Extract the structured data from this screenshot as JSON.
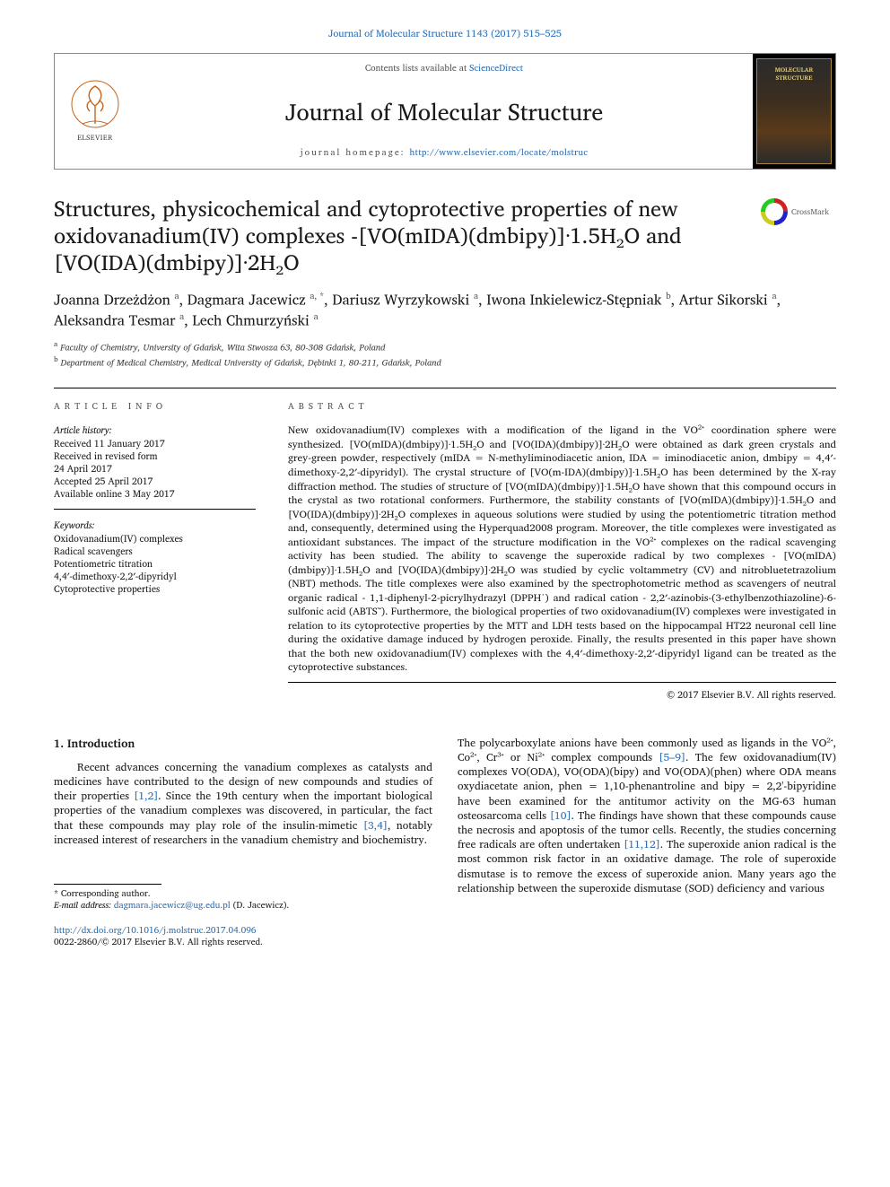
{
  "citation": {
    "text": "Journal of Molecular Structure 1143 (2017) 515–525",
    "link_color": "#2a6fb5"
  },
  "masthead": {
    "elsevier_label": "ELSEVIER",
    "contents_prefix": "Contents lists available at ",
    "contents_linktext": "ScienceDirect",
    "journal": "Journal of Molecular Structure",
    "homepage_label": "journal homepage: ",
    "homepage_url": "http://www.elsevier.com/locate/molstruc",
    "cover_text": "MOLECULAR STRUCTURE"
  },
  "crossmark_label": "CrossMark",
  "title": "Structures, physicochemical and cytoprotective properties of new oxidovanadium(IV) complexes -[VO(mIDA)(dmbipy)]·1.5H₂O and [VO(IDA)(dmbipy)]·2H₂O",
  "authors_html": "Joanna Drzeżdżon <sup>a</sup>, Dagmara Jacewicz <sup>a, *</sup>, Dariusz Wyrzykowski <sup>a</sup>, Iwona Inkielewicz-Stępniak <sup>b</sup>, Artur Sikorski <sup>a</sup>, Aleksandra Tesmar <sup>a</sup>, Lech Chmurzyński <sup>a</sup>",
  "affiliations": [
    {
      "sup": "a",
      "text": "Faculty of Chemistry, University of Gdańsk, Wita Stwosza 63, 80-308 Gdańsk, Poland"
    },
    {
      "sup": "b",
      "text": "Department of Medical Chemistry, Medical University of Gdańsk, Dębinki 1, 80-211, Gdańsk, Poland"
    }
  ],
  "article_info": {
    "heading": "ARTICLE INFO",
    "history_heading": "Article history:",
    "history_lines": [
      "Received 11 January 2017",
      "Received in revised form",
      "24 April 2017",
      "Accepted 25 April 2017",
      "Available online 3 May 2017"
    ],
    "keywords_heading": "Keywords:",
    "keywords": [
      "Oxidovanadium(IV) complexes",
      "Radical scavengers",
      "Potentiometric titration",
      "4,4′-dimethoxy-2,2′-dipyridyl",
      "Cytoprotective properties"
    ]
  },
  "abstract": {
    "heading": "ABSTRACT",
    "body": "New oxidovanadium(IV) complexes with a modification of the ligand in the VO²⁺ coordination sphere were synthesized. [VO(mIDA)(dmbipy)]·1.5H₂O and [VO(IDA)(dmbipy)]·2H₂O were obtained as dark green crystals and grey-green powder, respectively (mIDA = N-methyliminodiacetic anion, IDA = iminodiacetic anion, dmbipy = 4,4′-dimethoxy-2,2′-dipyridyl). The crystal structure of [VO(m-IDA)(dmbipy)]·1.5H₂O has been determined by the X-ray diffraction method. The studies of structure of [VO(mIDA)(dmbipy)]·1.5H₂O have shown that this compound occurs in the crystal as two rotational conformers. Furthermore, the stability constants of [VO(mIDA)(dmbipy)]·1.5H₂O and [VO(IDA)(dmbipy)]·2H₂O complexes in aqueous solutions were studied by using the potentiometric titration method and, consequently, determined using the Hyperquad2008 program. Moreover, the title complexes were investigated as antioxidant substances. The impact of the structure modification in the VO²⁺ complexes on the radical scavenging activity has been studied. The ability to scavenge the superoxide radical by two complexes - [VO(mIDA)(dmbipy)]·1.5H₂O and [VO(IDA)(dmbipy)]·2H₂O was studied by cyclic voltammetry (CV) and nitrobluetetrazolium (NBT) methods. The title complexes were also examined by the spectrophotometric method as scavengers of neutral organic radical - 1,1-diphenyl-2-picrylhydrazyl (DPPH˙) and radical cation - 2,2′-azinobis-(3-ethylbenzothiazoline)-6-sulfonic acid (ABTS˙⁺). Furthermore, the biological properties of two oxidovanadium(IV) complexes were investigated in relation to its cytoprotective properties by the MTT and LDH tests based on the hippocampal HT22 neuronal cell line during the oxidative damage induced by hydrogen peroxide. Finally, the results presented in this paper have shown that the both new oxidovanadium(IV) complexes with the 4,4′-dimethoxy-2,2′-dipyridyl ligand can be treated as the cytoprotective substances.",
    "copyright": "© 2017 Elsevier B.V. All rights reserved."
  },
  "section1": {
    "heading": "1. Introduction",
    "col_left": "Recent advances concerning the vanadium complexes as catalysts and medicines have contributed to the design of new compounds and studies of their properties [1,2]. Since the 19th century when the important biological properties of the vanadium complexes was discovered, in particular, the fact that these compounds may play role of the insulin-mimetic [3,4], notably increased interest of researchers in the vanadium chemistry and biochemistry.",
    "col_right": "The polycarboxylate anions have been commonly used as ligands in the VO²⁺, Co²⁺, Cr³⁺ or Ni²⁺ complex compounds [5–9]. The few oxidovanadium(IV) complexes VO(ODA), VO(ODA)(bipy) and VO(ODA)(phen) where ODA means oxydiacetate anion, phen = 1,10-phenantroline and bipy = 2,2'-bipyridine have been examined for the antitumor activity on the MG-63 human osteosarcoma cells [10]. The findings have shown that these compounds cause the necrosis and apoptosis of the tumor cells. Recently, the studies concerning free radicals are often undertaken [11,12]. The superoxide anion radical is the most common risk factor in an oxidative damage. The role of superoxide dismutase is to remove the excess of superoxide anion. Many years ago the relationship between the superoxide dismutase (SOD) deficiency and various",
    "links_left": [
      "[1,2]",
      "[3,4]"
    ],
    "links_right": [
      "[5–9]",
      "[10]",
      "[11,12]"
    ]
  },
  "corresponding": {
    "star_line": "* Corresponding author.",
    "email_label": "E-mail address: ",
    "email": "dagmara.jacewicz@ug.edu.pl",
    "email_suffix": " (D. Jacewicz)."
  },
  "footer": {
    "doi": "http://dx.doi.org/10.1016/j.molstruc.2017.04.096",
    "issn_line": "0022-2860/© 2017 Elsevier B.V. All rights reserved."
  },
  "colors": {
    "link": "#2a6fb5",
    "rule": "#000000",
    "muted": "#555555"
  }
}
